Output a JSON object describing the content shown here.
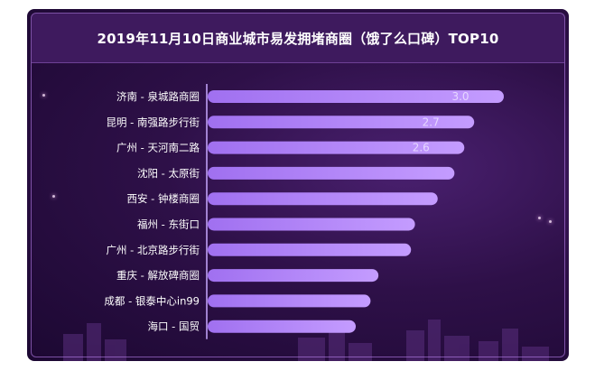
{
  "chart_data": {
    "type": "bar",
    "orientation": "horizontal",
    "title": "2019年11月10日商业城市易发拥堵商圈（饿了么口碑）TOP10",
    "categories": [
      "济南 - 泉城路商圈",
      "昆明 - 南强路步行街",
      "广州 - 天河南二路",
      "沈阳 - 太原街",
      "西安 - 钟楼商圈",
      "福州 - 东街口",
      "广州 - 北京路步行街",
      "重庆 - 解放碑商圈",
      "成都 - 银泰中心in99",
      "海口 - 国贸"
    ],
    "values": [
      3.0,
      2.7,
      2.6,
      2.5,
      2.33,
      2.1,
      2.06,
      1.73,
      1.65,
      1.5
    ],
    "data_labels": [
      "3.0",
      "2.7",
      "2.6",
      "",
      "",
      "",
      "",
      "",
      "",
      ""
    ],
    "xlim": [
      0,
      3.0
    ],
    "grid": false,
    "colors": {
      "bar": "#b888ff",
      "bar_highlight": "#d0b0ff",
      "label_text": "#ffffff",
      "data_label": "#e6d6ff",
      "axis_line": "#c8a8ff",
      "background": "#2e1048"
    }
  }
}
